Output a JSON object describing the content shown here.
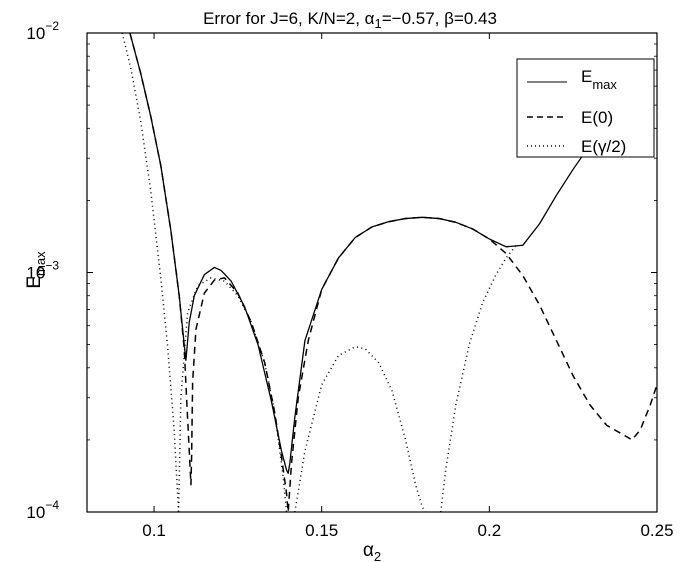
{
  "chart_data": {
    "type": "line",
    "title": {
      "prefix": "Error for J=6, K/N=2, ",
      "alpha_sym": "α",
      "alpha_sub": "1",
      "middle": "=−0.57, ",
      "beta_part": "β=0.43"
    },
    "xlabel": {
      "base": "α",
      "sub": "2"
    },
    "ylabel": {
      "base": "E",
      "sub": "max"
    },
    "x_scale": "linear",
    "y_scale": "log",
    "xlim": [
      0.08,
      0.25
    ],
    "ylim": [
      0.0001,
      0.01
    ],
    "x_ticks": [
      "0.1",
      "0.15",
      "0.2",
      "0.25"
    ],
    "y_ticks": [
      {
        "value": 0.01,
        "base": "10",
        "exp": "−2"
      },
      {
        "value": 0.001,
        "base": "10",
        "exp": "−3"
      },
      {
        "value": 0.0001,
        "base": "10",
        "exp": "−4"
      }
    ],
    "grid": false,
    "legend_position": "top-right",
    "series": [
      {
        "name": "E_max",
        "legend": {
          "base": "E",
          "sub": "max"
        },
        "style": "solid",
        "color": "#000000",
        "x": [
          0.0928,
          0.096,
          0.099,
          0.102,
          0.105,
          0.1075,
          0.109,
          0.1095,
          0.1105,
          0.112,
          0.115,
          0.118,
          0.12,
          0.123,
          0.127,
          0.131,
          0.135,
          0.138,
          0.1395,
          0.14,
          0.1405,
          0.142,
          0.145,
          0.15,
          0.155,
          0.16,
          0.165,
          0.17,
          0.175,
          0.18,
          0.185,
          0.19,
          0.195,
          0.2,
          0.205,
          0.21,
          0.215,
          0.22,
          0.225,
          0.23,
          0.233
        ],
        "y": [
          0.01,
          0.0068,
          0.0045,
          0.0028,
          0.0015,
          0.0008,
          0.0005,
          0.00043,
          0.00062,
          0.0008,
          0.00098,
          0.00105,
          0.00102,
          0.00092,
          0.00072,
          0.0005,
          0.00029,
          0.00018,
          0.00015,
          0.000145,
          0.00016,
          0.00025,
          0.00052,
          0.00085,
          0.00115,
          0.0014,
          0.00155,
          0.00163,
          0.00168,
          0.0017,
          0.00168,
          0.00162,
          0.00152,
          0.00138,
          0.00128,
          0.0013,
          0.0016,
          0.0021,
          0.0027,
          0.0034,
          0.0039
        ]
      },
      {
        "name": "E(0)",
        "legend": {
          "text": "E(0)"
        },
        "style": "dashed",
        "color": "#000000",
        "x": [
          0.0928,
          0.096,
          0.099,
          0.102,
          0.105,
          0.1075,
          0.109,
          0.1098,
          0.1105,
          0.111,
          0.1112,
          0.1115,
          0.1125,
          0.115,
          0.118,
          0.121,
          0.125,
          0.129,
          0.133,
          0.136,
          0.138,
          0.1395,
          0.14,
          0.141,
          0.143,
          0.146,
          0.15,
          0.155,
          0.16,
          0.165,
          0.17,
          0.175,
          0.18,
          0.185,
          0.19,
          0.195,
          0.2,
          0.205,
          0.21,
          0.215,
          0.22,
          0.225,
          0.23,
          0.235,
          0.24,
          0.2425,
          0.245,
          0.248,
          0.25
        ],
        "y": [
          0.01,
          0.0068,
          0.0045,
          0.0028,
          0.0015,
          0.0008,
          0.00048,
          0.00028,
          0.00018,
          0.00013,
          0.00017,
          0.00035,
          0.00058,
          0.00082,
          0.00093,
          0.00095,
          0.00082,
          0.00062,
          0.00042,
          0.00026,
          0.00017,
          0.00012,
          0.0001,
          0.00016,
          0.0003,
          0.00052,
          0.00085,
          0.00115,
          0.0014,
          0.00155,
          0.00163,
          0.00168,
          0.0017,
          0.00168,
          0.00162,
          0.00152,
          0.00138,
          0.0012,
          0.00097,
          0.00073,
          0.00052,
          0.00037,
          0.00028,
          0.00023,
          0.00021,
          0.0002,
          0.00022,
          0.00028,
          0.00034
        ]
      },
      {
        "name": "E(γ/2)",
        "legend": {
          "text": "E(γ/2)"
        },
        "style": "dotted",
        "color": "#000000",
        "x": [
          0.0905,
          0.093,
          0.096,
          0.099,
          0.102,
          0.104,
          0.106,
          0.107,
          0.1073
        ],
        "y": [
          0.01,
          0.0072,
          0.0043,
          0.0022,
          0.00095,
          0.0005,
          0.00022,
          0.00012,
          0.0001
        ],
        "segments": [
          {
            "x": [
              0.1073,
              0.108,
              0.11,
              0.113,
              0.117,
              0.121,
              0.125,
              0.129,
              0.133,
              0.136,
              0.1385,
              0.1395
            ],
            "y": [
              0.0001,
              0.0003,
              0.00068,
              0.00088,
              0.00095,
              0.00092,
              0.0008,
              0.00062,
              0.00042,
              0.00026,
              0.00014,
              0.0001
            ]
          },
          {
            "x": [
              0.142,
              0.145,
              0.15,
              0.155,
              0.16,
              0.163,
              0.167,
              0.171,
              0.175,
              0.178,
              0.18,
              0.181
            ],
            "y": [
              0.0001,
              0.00018,
              0.00034,
              0.00045,
              0.00049,
              0.00048,
              0.00042,
              0.00032,
              0.0002,
              0.00013,
              0.000105,
              0.0001
            ]
          },
          {
            "x": [
              0.1855,
              0.187,
              0.19,
              0.194,
              0.198,
              0.202,
              0.205,
              0.208
            ],
            "y": [
              0.0001,
              0.00015,
              0.00028,
              0.0005,
              0.00075,
              0.00098,
              0.00115,
              0.0013
            ]
          }
        ]
      }
    ]
  }
}
